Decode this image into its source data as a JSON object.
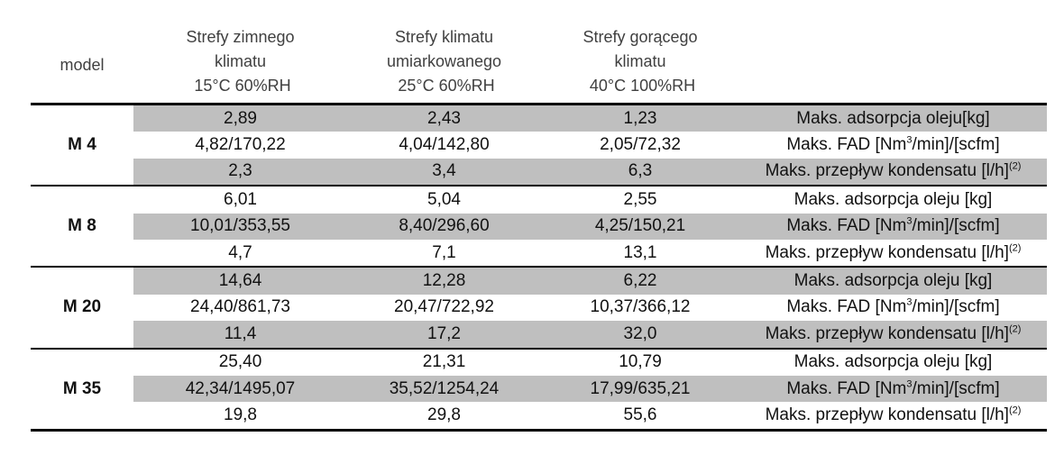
{
  "header": {
    "model": "model",
    "columns": [
      {
        "lines": [
          "Strefy zimnego",
          "klimatu",
          " 15°C 60%RH"
        ]
      },
      {
        "lines": [
          "Strefy klimatu",
          "umiarkowanego",
          " 25°C 60%RH"
        ]
      },
      {
        "lines": [
          "Strefy gorącego",
          "klimatu",
          " 40°C 100%RH"
        ]
      }
    ]
  },
  "groups": [
    {
      "model": "M 4",
      "rows": [
        {
          "v1": "2,89",
          "v2": "2,43",
          "v3": "1,23",
          "label": "Maks. adsorpcja oleju[kg]",
          "sup": "",
          "gray": true
        },
        {
          "v1": "4,82/170,22",
          "v2": "4,04/142,80",
          "v3": "2,05/72,32",
          "label_pre": "Maks. FAD [Nm",
          "label_sup": "3",
          "label_post": "/min]/[scfm]",
          "gray": false
        },
        {
          "v1": "2,3",
          "v2": "3,4",
          "v3": "6,3",
          "label": "Maks. przepływ kondensatu [l/h]",
          "sup": "(2)",
          "gray": true
        }
      ]
    },
    {
      "model": "M 8",
      "rows": [
        {
          "v1": "6,01",
          "v2": "5,04",
          "v3": "2,55",
          "label": "Maks. adsorpcja oleju [kg]",
          "sup": "",
          "gray": false
        },
        {
          "v1": "10,01/353,55",
          "v2": "8,40/296,60",
          "v3": "4,25/150,21",
          "label_pre": "Maks. FAD [Nm",
          "label_sup": "3",
          "label_post": "/min]/[scfm]",
          "gray": true
        },
        {
          "v1": "4,7",
          "v2": "7,1",
          "v3": "13,1",
          "label": "Maks. przepływ kondensatu [l/h]",
          "sup": "(2)",
          "gray": false
        }
      ]
    },
    {
      "model": "M 20",
      "rows": [
        {
          "v1": "14,64",
          "v2": "12,28",
          "v3": "6,22",
          "label": "Maks. adsorpcja oleju [kg]",
          "sup": "",
          "gray": true
        },
        {
          "v1": "24,40/861,73",
          "v2": "20,47/722,92",
          "v3": "10,37/366,12",
          "label_pre": "Maks. FAD [Nm",
          "label_sup": "3",
          "label_post": "/min]/[scfm]",
          "gray": false
        },
        {
          "v1": "11,4",
          "v2": "17,2",
          "v3": "32,0",
          "label": "Maks. przepływ kondensatu [l/h]",
          "sup": "(2)",
          "gray": true
        }
      ]
    },
    {
      "model": "M 35",
      "rows": [
        {
          "v1": "25,40",
          "v2": "21,31",
          "v3": "10,79",
          "label": "Maks. adsorpcja oleju [kg]",
          "sup": "",
          "gray": false
        },
        {
          "v1": "42,34/1495,07",
          "v2": "35,52/1254,24",
          "v3": "17,99/635,21",
          "label_pre": "Maks. FAD [Nm",
          "label_sup": "3",
          "label_post": "/min]/[scfm]",
          "gray": true
        },
        {
          "v1": "19,8",
          "v2": "29,8",
          "v3": "55,6",
          "label": "Maks. przepływ kondensatu [l/h]",
          "sup": "(2)",
          "gray": false
        }
      ]
    }
  ],
  "colors": {
    "band_gray": "#bfbfbf",
    "rule": "#000000",
    "header_text": "#404040"
  }
}
